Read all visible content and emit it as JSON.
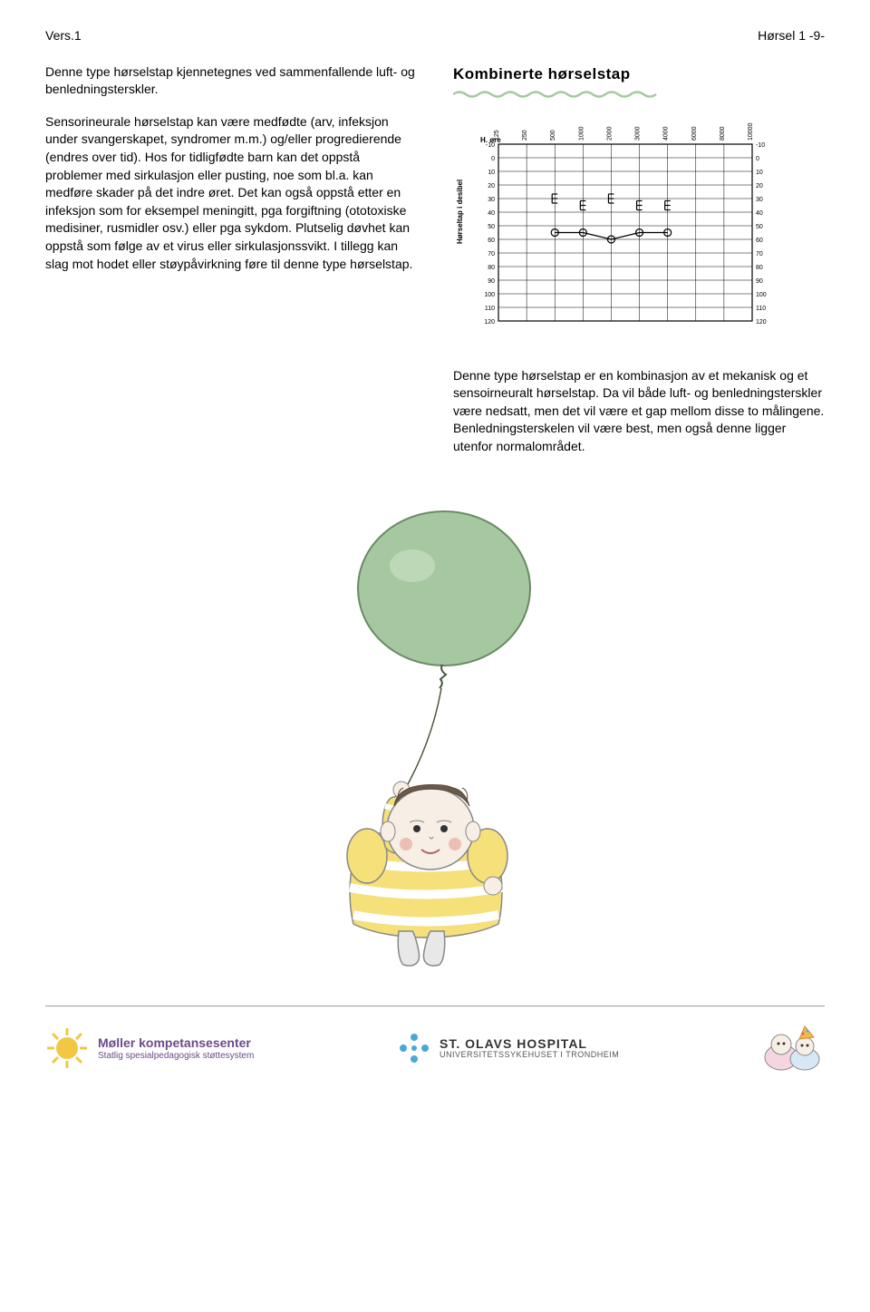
{
  "header": {
    "left": "Vers.1",
    "right": "Hørsel 1 -9-"
  },
  "left_column": {
    "para1": "Denne type hørselstap kjennetegnes ved sammenfallende luft- og benledningsterskler.",
    "para2": "Sensorineurale hørselstap kan være medfødte (arv, infeksjon under svangerskapet, syndromer m.m.) og/eller progredierende (endres over tid). Hos for tidligfødte barn kan det oppstå problemer med sirkulasjon eller pusting, noe som bl.a. kan medføre skader på det indre øret. Det kan også oppstå etter en infeksjon som for eksempel meningitt, pga forgiftning (ototoxiske medisiner, rusmidler osv.) eller pga sykdom. Plutselig døvhet kan oppstå som følge av et virus eller sirkulasjonssvikt. I tillegg kan slag mot hodet eller støypåvirkning føre til denne type hørselstap."
  },
  "right_column": {
    "heading": "Kombinerte hørselstap",
    "para": "Denne type hørselstap er en kombinasjon av et mekanisk og et sensoirneuralt hørselstap. Da vil både luft- og benledningsterskler være nedsatt, men det vil være et gap mellom disse to målingene. Benledningsterskelen vil være best, men også denne ligger utenfor normalområdet."
  },
  "audiogram": {
    "type": "line",
    "title": "H. øre",
    "ylabel": "Hørseltap i desibel",
    "x_ticks": [
      "125",
      "250",
      "500",
      "1000",
      "2000",
      "3000",
      "4000",
      "6000",
      "8000",
      "10000"
    ],
    "y_ticks": [
      "-10",
      "0",
      "10",
      "20",
      "30",
      "40",
      "50",
      "60",
      "70",
      "80",
      "90",
      "100",
      "110",
      "120"
    ],
    "series": [
      {
        "name": "bone",
        "marker": "E",
        "values": [
          {
            "x": "500",
            "y": 30
          },
          {
            "x": "1000",
            "y": 35
          },
          {
            "x": "2000",
            "y": 30
          },
          {
            "x": "3000",
            "y": 35
          },
          {
            "x": "4000",
            "y": 35
          }
        ],
        "color": "#000000",
        "connected": false
      },
      {
        "name": "air",
        "marker": "O",
        "values": [
          {
            "x": "500",
            "y": 55
          },
          {
            "x": "1000",
            "y": 55
          },
          {
            "x": "2000",
            "y": 60
          },
          {
            "x": "3000",
            "y": 55
          },
          {
            "x": "4000",
            "y": 55
          }
        ],
        "color": "#000000",
        "connected": true
      }
    ],
    "grid_color": "#000000",
    "background_color": "#ffffff",
    "label_fontsize": 7,
    "axis_fontsize": 8
  },
  "illustration": {
    "balloon_color": "#a6c8a0",
    "shirt_color": "#f5e07a",
    "shirt_stripe": "#ffffff",
    "skin_color": "#f7eee6",
    "hair_color": "#6b5a4a",
    "pants_color": "#e8e8e8",
    "cheek_color": "#e8a9a0"
  },
  "footer": {
    "left_icon_color": "#f2c744",
    "left_name": "Møller kompetansesenter",
    "left_sub": "Statlig spesialpedagogisk støttesystem",
    "center_name": "ST. OLAVS HOSPITAL",
    "center_sub": "UNIVERSITETSSYKEHUSET I TRONDHEIM",
    "center_dots_color": "#4aa8d8",
    "cartoon_hat_color": "#f4b94a"
  }
}
